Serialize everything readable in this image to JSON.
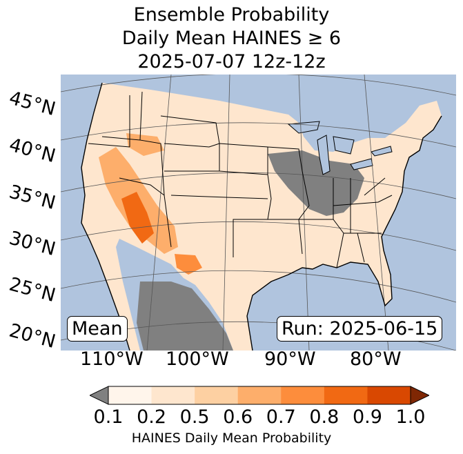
{
  "title": {
    "line1": "Ensemble Probability",
    "line2": "Daily Mean HAINES ≥ 6",
    "line3": "2025-07-07 12z-12z"
  },
  "map": {
    "lat_labels": [
      "45°N",
      "40°N",
      "35°N",
      "30°N",
      "25°N",
      "20°N"
    ],
    "lon_labels": [
      "110°W",
      "100°W",
      "90°W",
      "80°W"
    ],
    "stat_label": "Mean",
    "run_label": "Run: 2025-06-15",
    "colors": {
      "ocean": "#b0c4de",
      "land_low": "#fff5eb",
      "missing": "#808080",
      "border": "#000000",
      "graticule": "#555555"
    }
  },
  "colorbar": {
    "label": "HAINES Daily Mean Probability",
    "ticks": [
      "0.1",
      "0.2",
      "0.5",
      "0.6",
      "0.7",
      "0.8",
      "0.9",
      "1.0"
    ],
    "under_color": "#808080",
    "over_color": "#7f2704",
    "bins": [
      {
        "from": 0.1,
        "to": 0.2,
        "color": "#fff5eb"
      },
      {
        "from": 0.2,
        "to": 0.5,
        "color": "#fee6ce"
      },
      {
        "from": 0.5,
        "to": 0.6,
        "color": "#fdd0a2"
      },
      {
        "from": 0.6,
        "to": 0.7,
        "color": "#fdae6b"
      },
      {
        "from": 0.7,
        "to": 0.8,
        "color": "#fd8d3c"
      },
      {
        "from": 0.8,
        "to": 0.9,
        "color": "#f16913"
      },
      {
        "from": 0.9,
        "to": 1.0,
        "color": "#d94801"
      }
    ]
  }
}
